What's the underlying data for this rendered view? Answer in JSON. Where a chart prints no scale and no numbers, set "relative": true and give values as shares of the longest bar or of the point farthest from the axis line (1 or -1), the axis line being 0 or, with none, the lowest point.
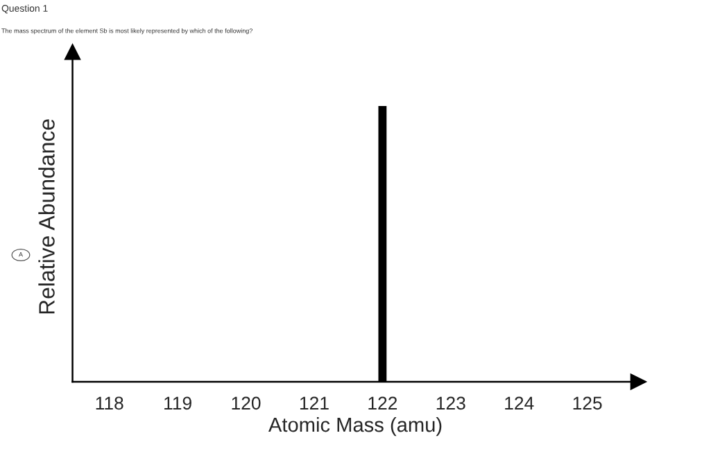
{
  "chart_data": {
    "type": "bar",
    "title": "Question 1",
    "subtitle": "The mass spectrum of the element Sb is most likely represented by which of the following?",
    "xlabel": "Atomic Mass (amu)",
    "ylabel": "Relative Abundance",
    "x": [
      122
    ],
    "values": [
      1
    ],
    "color": "#000000",
    "relative": true,
    "xlim": [
      117.46,
      125.75
    ],
    "xticks": [
      118,
      119,
      120,
      121,
      122,
      123,
      124,
      125
    ],
    "annotations": [
      "A"
    ],
    "grid": false,
    "legend": false
  }
}
